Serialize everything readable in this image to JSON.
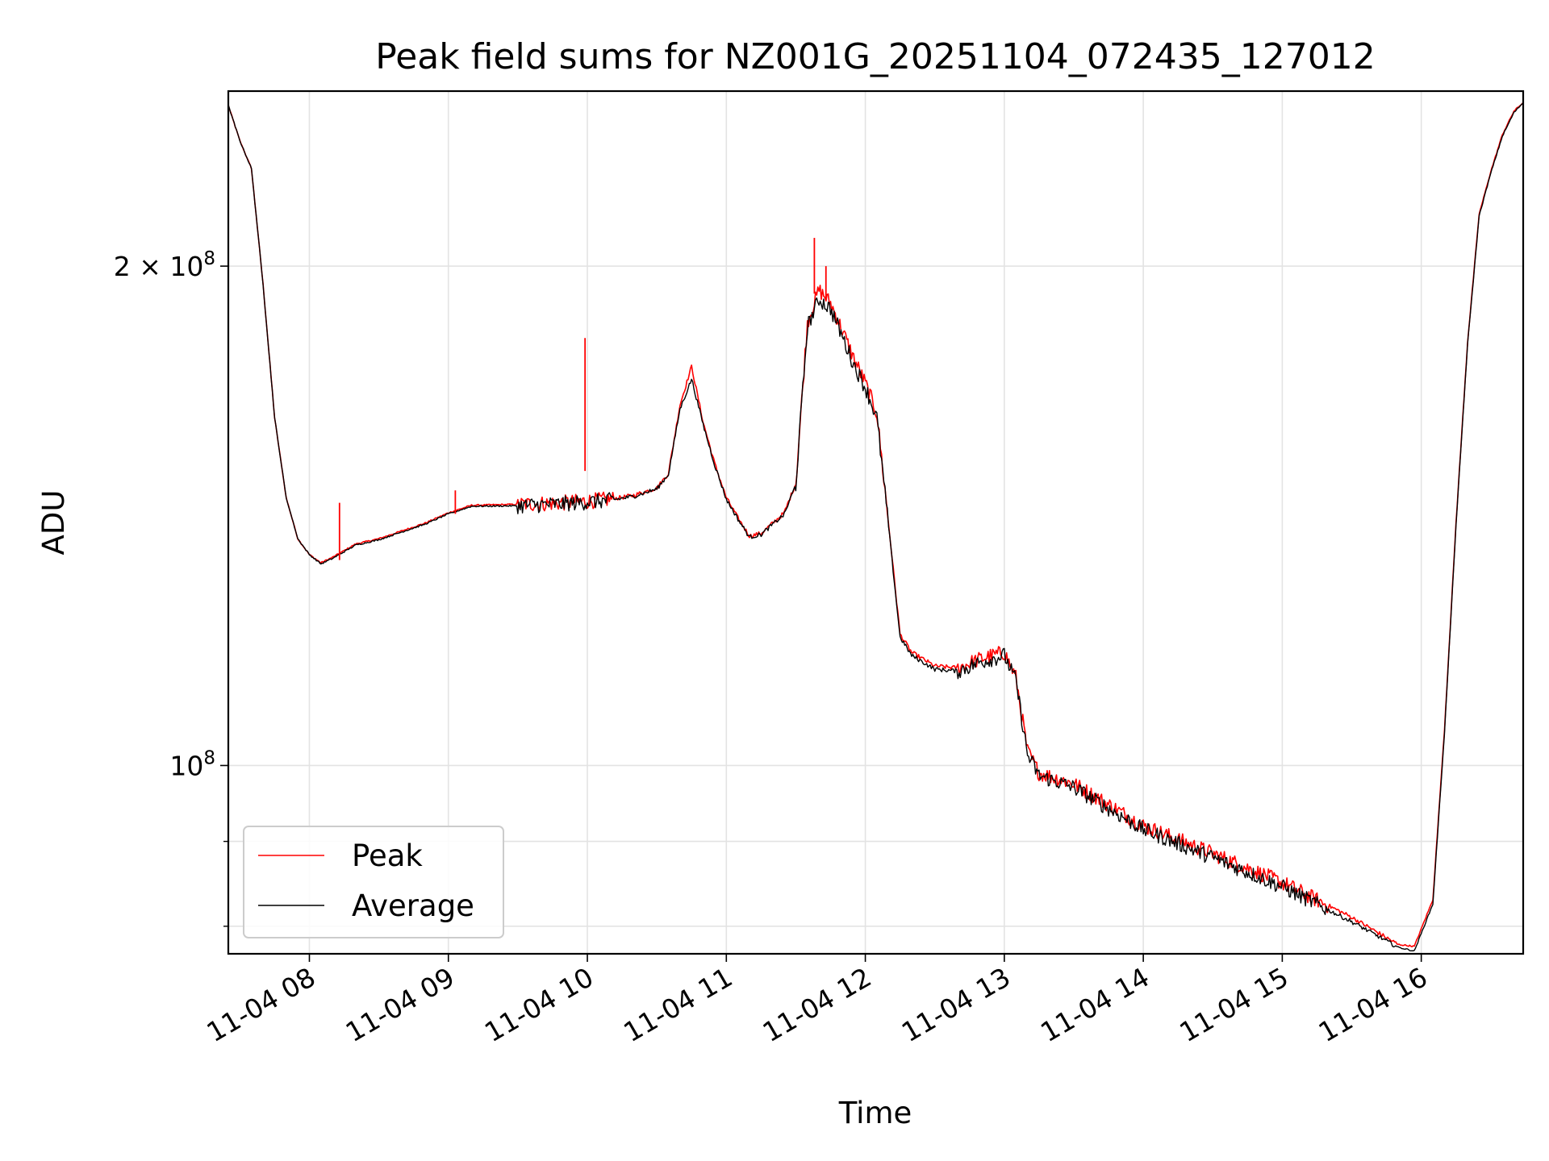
{
  "chart_data": {
    "type": "line",
    "title": "Peak field sums for NZ001G_20251104_072435_127012",
    "xlabel": "Time",
    "ylabel": "ADU",
    "yscale": "log",
    "xlim": [
      "2025-11-04 07:25",
      "2025-11-04 16:44"
    ],
    "ylim": [
      77000000,
      255000000
    ],
    "grid": true,
    "legend_location": "lower-left",
    "x_ticks": [
      "11-04 08",
      "11-04 09",
      "11-04 10",
      "11-04 11",
      "11-04 12",
      "11-04 13",
      "11-04 14",
      "11-04 15",
      "11-04 16"
    ],
    "y_ticks": [
      {
        "value": 100000000,
        "label": "10^8",
        "base": "10",
        "exp": "8"
      },
      {
        "value": 200000000,
        "label": "2×10^8",
        "mant": "2 × 10",
        "exp": "8"
      }
    ],
    "x": [
      "2025-11-04 07:25",
      "2025-11-04 07:30",
      "2025-11-04 07:35",
      "2025-11-04 07:40",
      "2025-11-04 07:45",
      "2025-11-04 07:50",
      "2025-11-04 07:55",
      "2025-11-04 08:00",
      "2025-11-04 08:05",
      "2025-11-04 08:10",
      "2025-11-04 08:20",
      "2025-11-04 08:30",
      "2025-11-04 08:40",
      "2025-11-04 08:50",
      "2025-11-04 09:00",
      "2025-11-04 09:10",
      "2025-11-04 09:30",
      "2025-11-04 09:50",
      "2025-11-04 10:10",
      "2025-11-04 10:20",
      "2025-11-04 10:30",
      "2025-11-04 10:35",
      "2025-11-04 10:40",
      "2025-11-04 10:45",
      "2025-11-04 10:50",
      "2025-11-04 10:55",
      "2025-11-04 11:00",
      "2025-11-04 11:05",
      "2025-11-04 11:10",
      "2025-11-04 11:15",
      "2025-11-04 11:25",
      "2025-11-04 11:30",
      "2025-11-04 11:35",
      "2025-11-04 11:40",
      "2025-11-04 11:45",
      "2025-11-04 11:50",
      "2025-11-04 11:55",
      "2025-11-04 12:00",
      "2025-11-04 12:05",
      "2025-11-04 12:10",
      "2025-11-04 12:15",
      "2025-11-04 12:20",
      "2025-11-04 12:30",
      "2025-11-04 12:40",
      "2025-11-04 12:50",
      "2025-11-04 13:00",
      "2025-11-04 13:05",
      "2025-11-04 13:10",
      "2025-11-04 13:15",
      "2025-11-04 13:30",
      "2025-11-04 14:00",
      "2025-11-04 14:30",
      "2025-11-04 15:00",
      "2025-11-04 15:30",
      "2025-11-04 15:50",
      "2025-11-04 15:57",
      "2025-11-04 16:05",
      "2025-11-04 16:10",
      "2025-11-04 16:15",
      "2025-11-04 16:20",
      "2025-11-04 16:25",
      "2025-11-04 16:30",
      "2025-11-04 16:35",
      "2025-11-04 16:40",
      "2025-11-04 16:44"
    ],
    "series": [
      {
        "name": "Peak",
        "color": "#ff0000",
        "values": [
          250000000,
          238000000,
          229000000,
          195000000,
          162000000,
          145000000,
          137000000,
          134000000,
          132500000,
          133500000,
          136000000,
          137000000,
          138500000,
          140000000,
          142000000,
          143500000,
          143700000,
          144000000,
          144700000,
          145500000,
          147000000,
          150000000,
          165000000,
          174000000,
          161000000,
          152000000,
          145000000,
          141000000,
          137500000,
          138000000,
          142000000,
          148000000,
          185000000,
          193500000,
          190000000,
          183000000,
          176000000,
          170000000,
          163000000,
          140000000,
          120000000,
          117000000,
          114800000,
          114500000,
          116000000,
          117000000,
          113000000,
          102000000,
          99000000,
          97500000,
          92000000,
          88500000,
          85000000,
          81000000,
          78000000,
          77800000,
          83000000,
          105000000,
          140000000,
          180000000,
          215000000,
          228000000,
          240000000,
          248000000,
          251000000
        ]
      },
      {
        "name": "Average",
        "color": "#000000",
        "values": [
          250000000,
          238000000,
          229000000,
          195000000,
          162000000,
          145000000,
          137000000,
          134000000,
          132300000,
          133300000,
          135800000,
          136800000,
          138300000,
          139800000,
          141800000,
          143300000,
          143400000,
          143800000,
          144500000,
          145300000,
          146800000,
          149800000,
          164000000,
          171000000,
          160500000,
          151700000,
          144700000,
          140800000,
          137300000,
          137800000,
          141700000,
          147700000,
          184000000,
          191000000,
          188500000,
          181500000,
          174500000,
          169000000,
          162000000,
          139500000,
          119500000,
          116500000,
          114300000,
          114000000,
          115500000,
          116500000,
          112500000,
          101500000,
          98600000,
          97000000,
          91500000,
          88000000,
          84500000,
          80500000,
          77700000,
          77300000,
          82500000,
          104500000,
          139500000,
          179500000,
          214500000,
          227500000,
          239500000,
          247500000,
          251000000
        ]
      }
    ],
    "spikes": [
      {
        "series": "Peak",
        "x": "2025-11-04 08:13",
        "top": 144000000,
        "base": 133000000
      },
      {
        "series": "Peak",
        "x": "2025-11-04 09:03",
        "top": 146500000,
        "base": 141800000
      },
      {
        "series": "Peak",
        "x": "2025-11-04 09:59",
        "top": 181000000,
        "base": 150500000
      },
      {
        "series": "Peak",
        "x": "2025-11-04 11:38",
        "top": 208000000,
        "base": 192500000
      },
      {
        "series": "Peak",
        "x": "2025-11-04 11:43",
        "top": 200000000,
        "base": 190500000
      }
    ]
  }
}
